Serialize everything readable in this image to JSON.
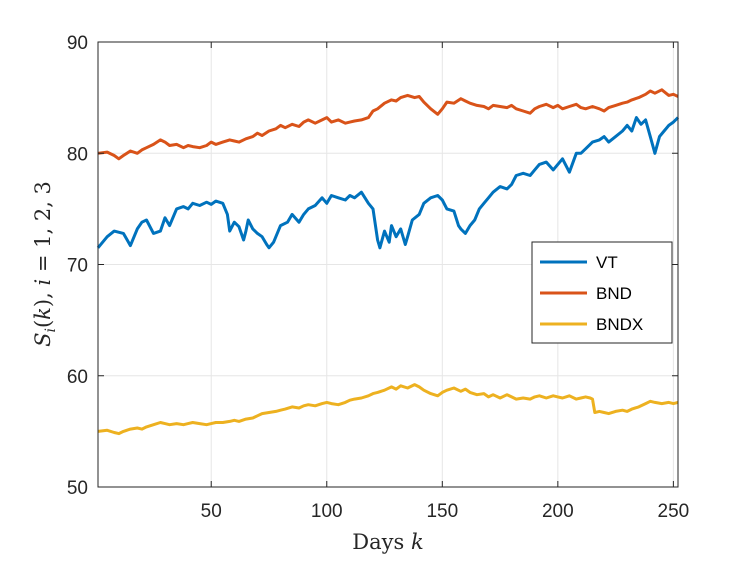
{
  "chart_data": {
    "type": "line",
    "xlabel": "Days k",
    "ylabel": "S_i(k), i = 1, 2, 3",
    "xlim": [
      1,
      252
    ],
    "ylim": [
      50,
      90
    ],
    "x_ticks": [
      50,
      100,
      150,
      200,
      250
    ],
    "y_ticks": [
      50,
      60,
      70,
      80,
      90
    ],
    "grid": true,
    "legend_position": "center-right",
    "series": [
      {
        "name": "VT",
        "color": "#0072BD",
        "x": [
          1,
          5,
          8,
          12,
          15,
          18,
          20,
          22,
          25,
          28,
          30,
          32,
          35,
          38,
          40,
          42,
          45,
          48,
          50,
          52,
          55,
          57,
          58,
          60,
          62,
          64,
          65,
          66,
          68,
          70,
          72,
          74,
          75,
          77,
          80,
          83,
          85,
          88,
          90,
          92,
          95,
          98,
          100,
          102,
          105,
          108,
          110,
          112,
          115,
          118,
          120,
          122,
          123,
          125,
          127,
          128,
          130,
          132,
          134,
          135,
          137,
          140,
          142,
          145,
          148,
          150,
          152,
          155,
          157,
          158,
          160,
          162,
          164,
          166,
          168,
          170,
          172,
          175,
          178,
          180,
          182,
          185,
          188,
          190,
          192,
          195,
          198,
          200,
          202,
          205,
          208,
          210,
          212,
          215,
          218,
          220,
          222,
          225,
          228,
          230,
          232,
          234,
          236,
          238,
          240,
          242,
          244,
          246,
          248,
          250,
          252
        ],
        "y": [
          71.5,
          72.5,
          73.0,
          72.8,
          71.7,
          73.2,
          73.8,
          74.0,
          72.8,
          73.0,
          74.2,
          73.5,
          75.0,
          75.2,
          75.0,
          75.5,
          75.3,
          75.6,
          75.4,
          75.7,
          75.5,
          74.5,
          73.0,
          73.8,
          73.4,
          72.2,
          73.0,
          74.0,
          73.2,
          72.8,
          72.5,
          71.8,
          71.5,
          72.0,
          73.5,
          73.8,
          74.5,
          73.8,
          74.5,
          75.0,
          75.3,
          76.0,
          75.5,
          76.2,
          76.0,
          75.8,
          76.2,
          76.0,
          76.5,
          75.5,
          75.0,
          72.2,
          71.5,
          73.0,
          72.0,
          73.5,
          72.5,
          73.2,
          71.8,
          72.5,
          74.0,
          74.5,
          75.5,
          76.0,
          76.2,
          75.8,
          75.0,
          74.8,
          73.5,
          73.2,
          72.8,
          73.5,
          74.0,
          75.0,
          75.5,
          76.0,
          76.5,
          77.0,
          76.8,
          77.2,
          78.0,
          78.2,
          78.0,
          78.5,
          79.0,
          79.2,
          78.5,
          79.0,
          79.5,
          78.3,
          80.0,
          80.0,
          80.4,
          81.0,
          81.2,
          81.5,
          81.0,
          81.5,
          82.0,
          82.5,
          82.0,
          83.2,
          82.6,
          83.0,
          81.5,
          80.0,
          81.5,
          82.0,
          82.5,
          82.8,
          83.2
        ]
      },
      {
        "name": "BND",
        "color": "#D95319",
        "x": [
          1,
          5,
          8,
          10,
          12,
          15,
          18,
          20,
          22,
          25,
          28,
          30,
          32,
          35,
          38,
          40,
          42,
          45,
          48,
          50,
          52,
          55,
          58,
          60,
          62,
          65,
          68,
          70,
          72,
          75,
          78,
          80,
          82,
          85,
          88,
          90,
          92,
          95,
          98,
          100,
          102,
          105,
          108,
          110,
          112,
          115,
          118,
          120,
          122,
          125,
          128,
          130,
          132,
          135,
          138,
          140,
          142,
          145,
          148,
          150,
          152,
          155,
          158,
          160,
          162,
          165,
          168,
          170,
          172,
          175,
          178,
          180,
          182,
          185,
          188,
          190,
          192,
          195,
          198,
          200,
          202,
          205,
          208,
          210,
          212,
          215,
          218,
          220,
          222,
          225,
          228,
          230,
          232,
          235,
          238,
          240,
          242,
          245,
          248,
          250,
          252
        ],
        "y": [
          80.0,
          80.1,
          79.8,
          79.5,
          79.8,
          80.2,
          80.0,
          80.3,
          80.5,
          80.8,
          81.2,
          81.0,
          80.7,
          80.8,
          80.5,
          80.7,
          80.6,
          80.5,
          80.7,
          81.0,
          80.8,
          81.0,
          81.2,
          81.1,
          81.0,
          81.3,
          81.5,
          81.8,
          81.6,
          82.0,
          82.2,
          82.5,
          82.3,
          82.6,
          82.4,
          82.8,
          83.0,
          82.7,
          83.0,
          83.2,
          82.8,
          83.0,
          82.7,
          82.8,
          82.9,
          83.0,
          83.2,
          83.8,
          84.0,
          84.5,
          84.8,
          84.7,
          85.0,
          85.2,
          85.0,
          85.1,
          84.6,
          84.0,
          83.5,
          84.0,
          84.6,
          84.5,
          84.9,
          84.7,
          84.5,
          84.3,
          84.2,
          84.0,
          84.3,
          84.2,
          84.1,
          84.3,
          84.0,
          83.8,
          83.6,
          84.0,
          84.2,
          84.4,
          84.1,
          84.3,
          84.0,
          84.2,
          84.4,
          84.1,
          84.0,
          84.2,
          84.0,
          83.8,
          84.1,
          84.3,
          84.5,
          84.6,
          84.8,
          85.0,
          85.3,
          85.6,
          85.4,
          85.7,
          85.2,
          85.3,
          85.1
        ]
      },
      {
        "name": "BNDX",
        "color": "#EDB120",
        "x": [
          1,
          5,
          8,
          10,
          12,
          15,
          18,
          20,
          22,
          25,
          28,
          30,
          32,
          35,
          38,
          40,
          42,
          45,
          48,
          50,
          52,
          55,
          58,
          60,
          62,
          65,
          68,
          70,
          72,
          75,
          78,
          80,
          82,
          85,
          88,
          90,
          92,
          95,
          98,
          100,
          102,
          105,
          108,
          110,
          112,
          115,
          118,
          120,
          122,
          125,
          128,
          130,
          132,
          135,
          138,
          140,
          142,
          145,
          148,
          150,
          152,
          155,
          158,
          160,
          162,
          165,
          168,
          170,
          172,
          175,
          178,
          180,
          182,
          185,
          188,
          190,
          192,
          195,
          198,
          200,
          202,
          205,
          208,
          210,
          212,
          214,
          215,
          216,
          218,
          220,
          222,
          225,
          228,
          230,
          232,
          235,
          238,
          240,
          242,
          245,
          248,
          250,
          252
        ],
        "y": [
          55.0,
          55.1,
          54.9,
          54.8,
          55.0,
          55.2,
          55.3,
          55.2,
          55.4,
          55.6,
          55.8,
          55.7,
          55.6,
          55.7,
          55.6,
          55.7,
          55.8,
          55.7,
          55.6,
          55.7,
          55.8,
          55.8,
          55.9,
          56.0,
          55.9,
          56.1,
          56.2,
          56.4,
          56.6,
          56.7,
          56.8,
          56.9,
          57.0,
          57.2,
          57.1,
          57.3,
          57.4,
          57.3,
          57.5,
          57.6,
          57.5,
          57.4,
          57.6,
          57.8,
          57.9,
          58.0,
          58.2,
          58.4,
          58.5,
          58.7,
          59.0,
          58.8,
          59.1,
          58.9,
          59.2,
          59.0,
          58.7,
          58.4,
          58.2,
          58.5,
          58.7,
          58.9,
          58.6,
          58.8,
          58.5,
          58.3,
          58.4,
          58.1,
          58.3,
          58.0,
          58.3,
          58.1,
          57.9,
          58.0,
          57.9,
          58.1,
          58.2,
          58.0,
          58.2,
          58.1,
          58.0,
          58.2,
          57.9,
          58.0,
          58.1,
          58.0,
          57.9,
          56.7,
          56.8,
          56.7,
          56.6,
          56.8,
          56.9,
          56.8,
          57.0,
          57.2,
          57.5,
          57.7,
          57.6,
          57.5,
          57.6,
          57.5,
          57.6
        ]
      }
    ]
  }
}
